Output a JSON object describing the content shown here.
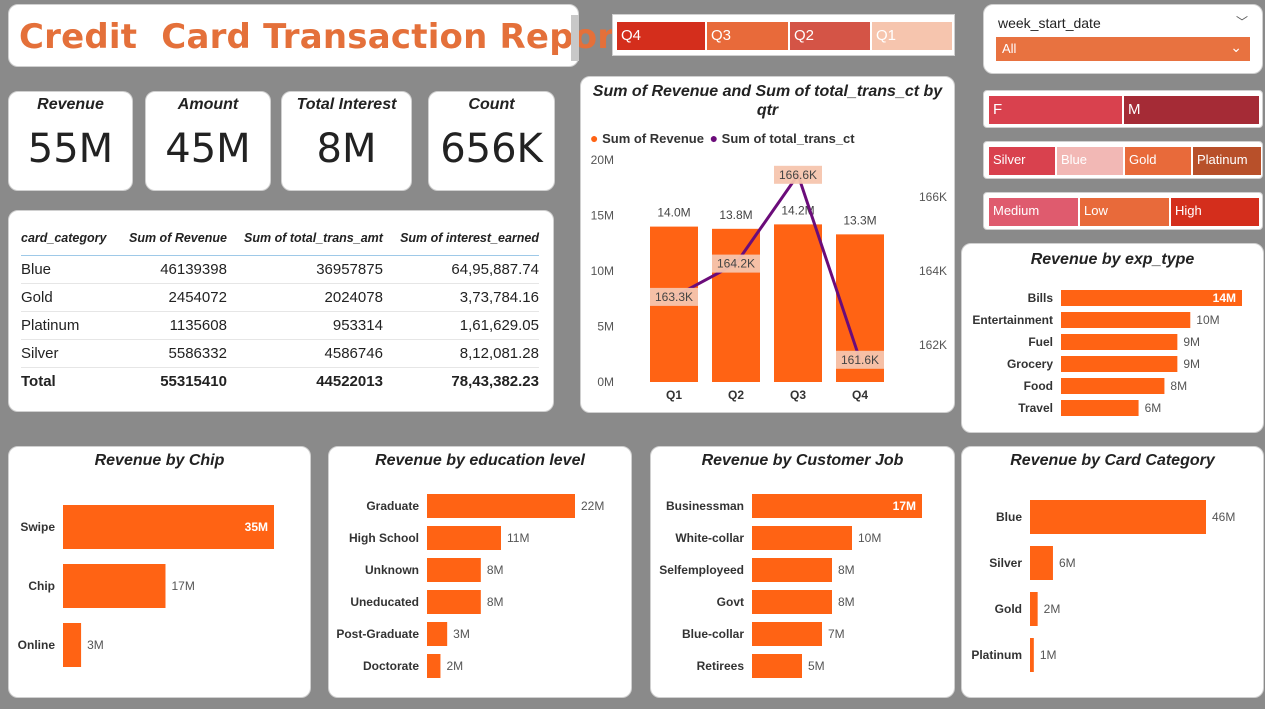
{
  "title": "Credit  Card Transaction Report",
  "kpis": [
    {
      "label": "Revenue",
      "value": "55M"
    },
    {
      "label": "Amount",
      "value": "45M"
    },
    {
      "label": "Total Interest",
      "value": "8M"
    },
    {
      "label": "Count",
      "value": "656K"
    }
  ],
  "table": {
    "headers": [
      "card_category",
      "Sum of Revenue",
      "Sum of total_trans_amt",
      "Sum of interest_earned"
    ],
    "rows": [
      [
        "Blue",
        "46139398",
        "36957875",
        "64,95,887.74"
      ],
      [
        "Gold",
        "2454072",
        "2024078",
        "3,73,784.16"
      ],
      [
        "Platinum",
        "1135608",
        "953314",
        "1,61,629.05"
      ],
      [
        "Silver",
        "5586332",
        "4586746",
        "8,12,081.28"
      ]
    ],
    "total": [
      "Total",
      "55315410",
      "44522013",
      "78,43,382.23"
    ]
  },
  "qtr_slicer": [
    "Q4",
    "Q3",
    "Q2",
    "Q1"
  ],
  "date_slicer": {
    "label": "week_start_date",
    "value": "All"
  },
  "gender_slicer": [
    "F",
    "M"
  ],
  "category_slicer": [
    "Silver",
    "Blue",
    "Gold",
    "Platinum"
  ],
  "income_slicer": [
    "Medium",
    "Low",
    "High"
  ],
  "colors": {
    "orange": "#FF6314",
    "purple": "#6B0C7A",
    "title": "#E4703A"
  },
  "combo": {
    "title_line1": "Sum of Revenue and Sum of total_trans_ct by",
    "title_line2": "qtr",
    "legend_revenue": "Sum of Revenue",
    "legend_count": "Sum of total_trans_ct"
  },
  "chart_data": [
    {
      "type": "bar+line",
      "title": "Sum of Revenue and Sum of total_trans_ct by qtr",
      "categories": [
        "Q1",
        "Q2",
        "Q3",
        "Q4"
      ],
      "series": [
        {
          "name": "Sum of Revenue",
          "axis": "left",
          "values": [
            14.0,
            13.8,
            14.2,
            13.3
          ],
          "labels": [
            "14.0M",
            "13.8M",
            "14.2M",
            "13.3M"
          ]
        },
        {
          "name": "Sum of total_trans_ct",
          "axis": "right",
          "values": [
            163.3,
            164.2,
            166.6,
            161.6
          ],
          "labels": [
            "163.3K",
            "164.2K",
            "166.6K",
            "161.6K"
          ]
        }
      ],
      "ylim_left": [
        0,
        20
      ],
      "yticks_left": [
        "0M",
        "5M",
        "10M",
        "15M",
        "20M"
      ],
      "ylim_right": [
        161,
        167
      ],
      "yticks_right": [
        "162K",
        "164K",
        "166K"
      ],
      "yticks_right_values": [
        162,
        164,
        166
      ]
    },
    {
      "type": "bar",
      "orientation": "horizontal",
      "title": "Revenue by exp_type",
      "categories": [
        "Bills",
        "Entertainment",
        "Fuel",
        "Grocery",
        "Food",
        "Travel"
      ],
      "values": [
        14,
        10,
        9,
        9,
        8,
        6
      ],
      "labels": [
        "14M",
        "10M",
        "9M",
        "9M",
        "8M",
        "6M"
      ]
    },
    {
      "type": "bar",
      "orientation": "horizontal",
      "title": "Revenue by Chip",
      "categories": [
        "Swipe",
        "Chip",
        "Online"
      ],
      "values": [
        35,
        17,
        3
      ],
      "labels": [
        "35M",
        "17M",
        "3M"
      ]
    },
    {
      "type": "bar",
      "orientation": "horizontal",
      "title": "Revenue by education level",
      "categories": [
        "Graduate",
        "High School",
        "Unknown",
        "Uneducated",
        "Post-Graduate",
        "Doctorate"
      ],
      "values": [
        22,
        11,
        8,
        8,
        3,
        2
      ],
      "labels": [
        "22M",
        "11M",
        "8M",
        "8M",
        "3M",
        "2M"
      ]
    },
    {
      "type": "bar",
      "orientation": "horizontal",
      "title": "Revenue by Customer Job",
      "categories": [
        "Businessman",
        "White-collar",
        "Selfemployeed",
        "Govt",
        "Blue-collar",
        "Retirees"
      ],
      "values": [
        17,
        10,
        8,
        8,
        7,
        5
      ],
      "labels": [
        "17M",
        "10M",
        "8M",
        "8M",
        "7M",
        "5M"
      ]
    },
    {
      "type": "bar",
      "orientation": "horizontal",
      "title": "Revenue by Card Category",
      "categories": [
        "Blue",
        "Silver",
        "Gold",
        "Platinum"
      ],
      "values": [
        46,
        6,
        2,
        1
      ],
      "labels": [
        "46M",
        "6M",
        "2M",
        "1M"
      ]
    }
  ]
}
